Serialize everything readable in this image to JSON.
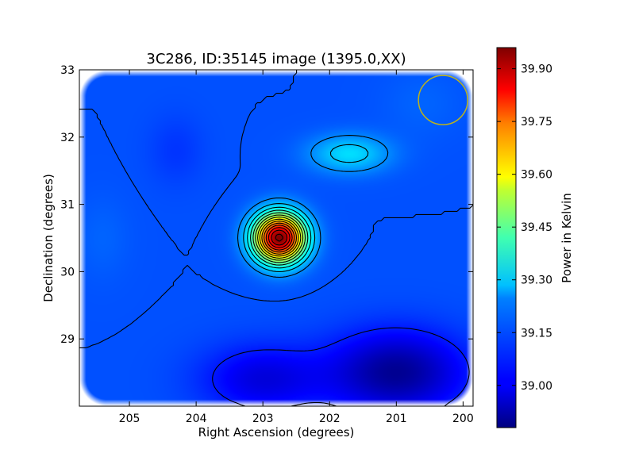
{
  "chart_data": {
    "type": "heatmap",
    "title": "3C286, ID:35145 image (1395.0,XX)",
    "xlabel": "Right Ascension (degrees)",
    "ylabel": "Declination (degrees)",
    "xlim": [
      205.75,
      199.85
    ],
    "ylim": [
      28.0,
      33.0
    ],
    "x_inverted": true,
    "xticks": [
      "205",
      "204",
      "203",
      "202",
      "201",
      "200"
    ],
    "xtick_values": [
      205,
      204,
      203,
      202,
      201,
      200
    ],
    "yticks": [
      "29",
      "30",
      "31",
      "32",
      "33"
    ],
    "ytick_values": [
      29,
      30,
      31,
      32,
      33
    ],
    "colormap": "jet",
    "colorbar": {
      "label": "Power in Kelvin",
      "vmin": 38.88,
      "vmax": 39.96,
      "ticks": [
        "39.00",
        "39.15",
        "39.30",
        "39.45",
        "39.60",
        "39.75",
        "39.90"
      ],
      "tick_values": [
        39.0,
        39.15,
        39.3,
        39.45,
        39.6,
        39.75,
        39.9
      ]
    },
    "background_level": 39.1,
    "sources": [
      {
        "ra": 202.75,
        "dec": 30.5,
        "peak": 39.96,
        "description": "bright central source"
      },
      {
        "ra": 201.7,
        "dec": 31.75,
        "peak": 39.25,
        "description": "secondary source"
      }
    ],
    "low_regions": [
      {
        "ra": 201.0,
        "dec": 28.5,
        "min": 38.9
      },
      {
        "ra": 203.0,
        "dec": 28.4,
        "min": 38.98
      }
    ],
    "beam_circle": {
      "ra": 200.3,
      "dec": 32.55,
      "color": "#bdb31a"
    },
    "contour_color": "#000000"
  }
}
